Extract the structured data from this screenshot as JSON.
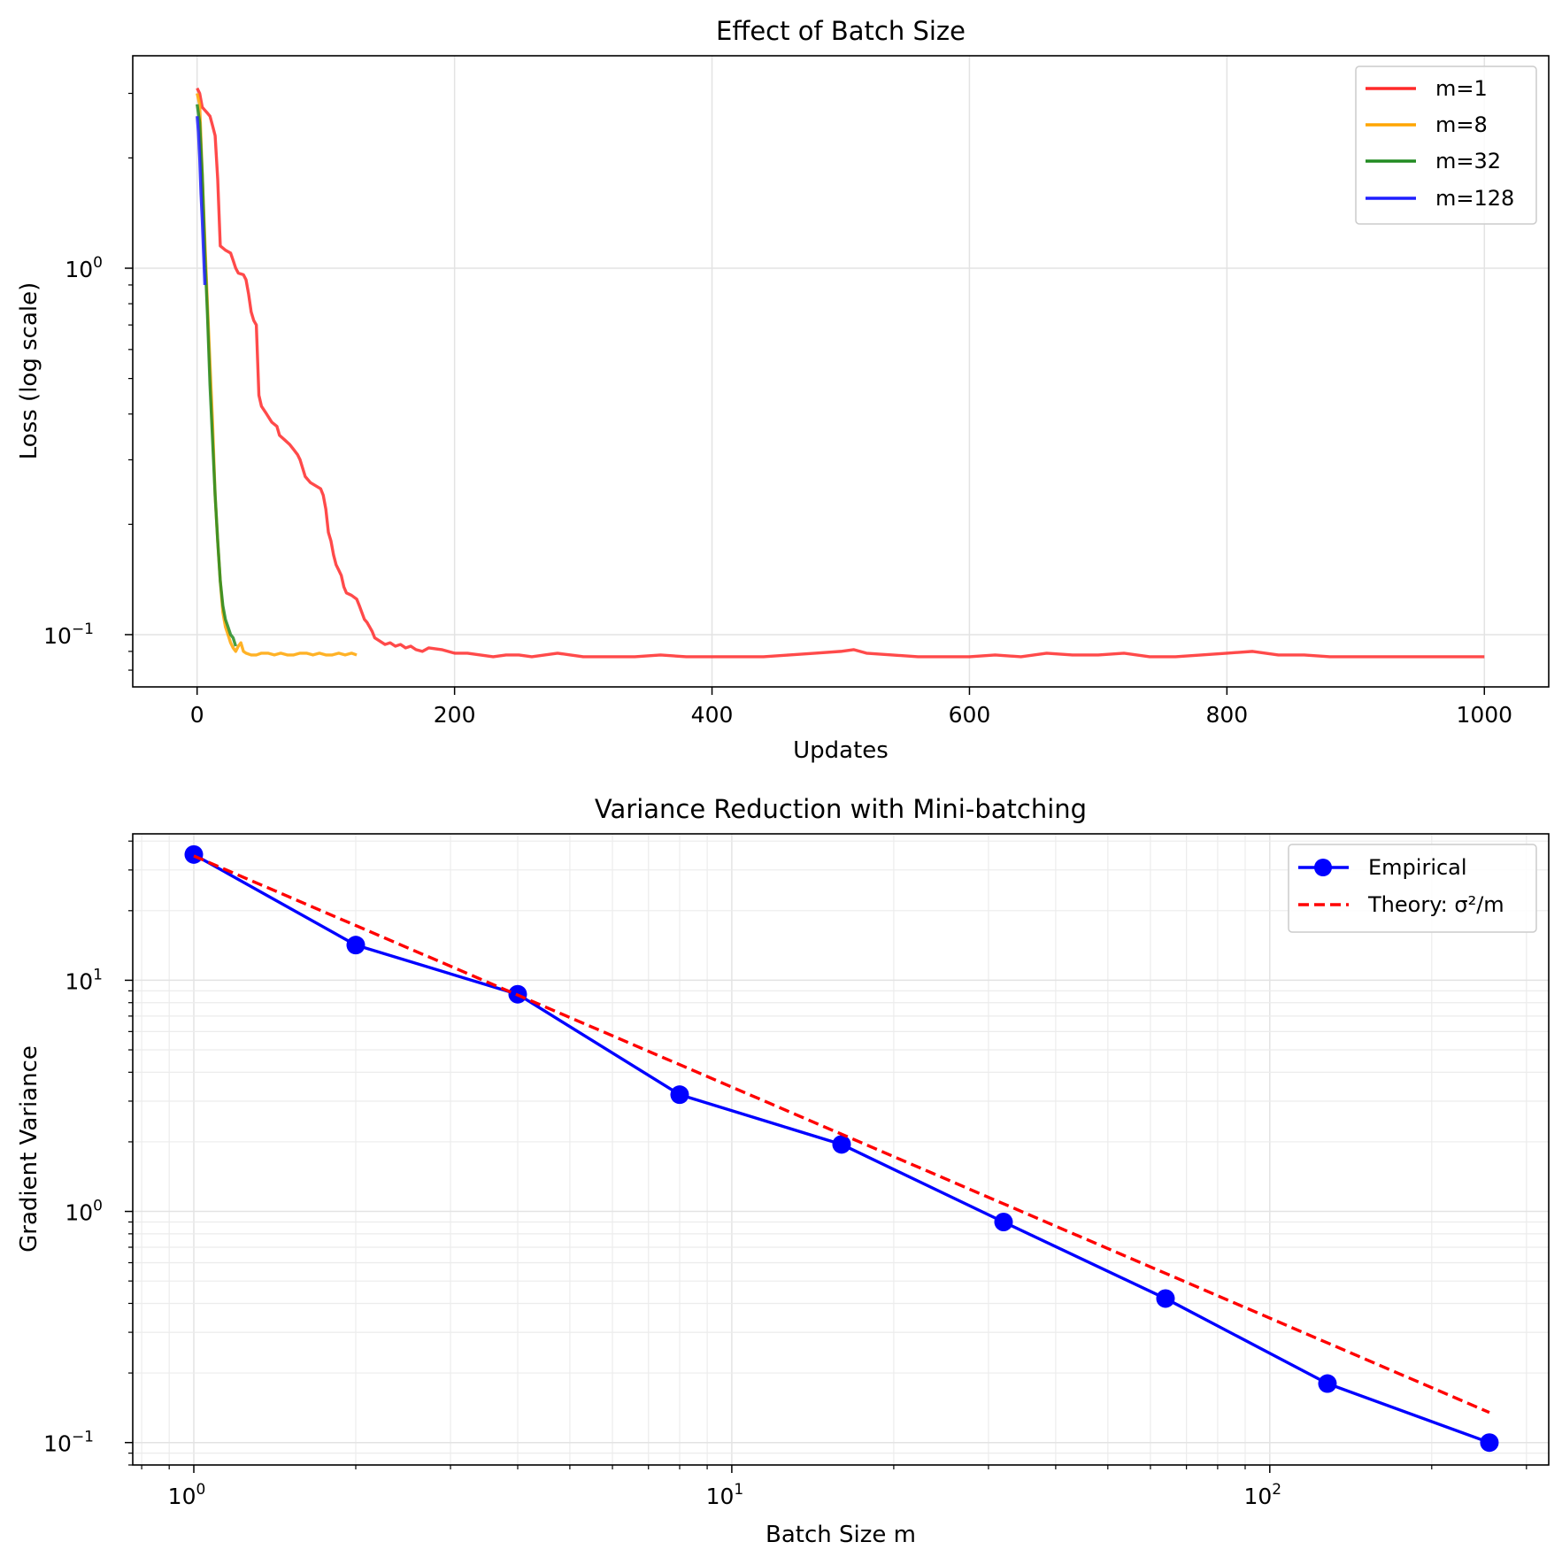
{
  "chart_data": [
    {
      "type": "line",
      "title": "Effect of Batch Size",
      "xlabel": "Updates",
      "ylabel": "Loss (log scale)",
      "xscale": "linear",
      "yscale": "log",
      "xlim": [
        -50,
        1050
      ],
      "ylim": [
        0.072,
        3.8
      ],
      "xticks": [
        0,
        200,
        400,
        600,
        800,
        1000
      ],
      "xtick_labels": [
        "0",
        "200",
        "400",
        "600",
        "800",
        "1000"
      ],
      "yticks": [
        1,
        0.1
      ],
      "ytick_labels": [
        {
          "base": "10",
          "exp": "0"
        },
        {
          "base": "10",
          "exp": "−1"
        }
      ],
      "grid": true,
      "legend": "top-right",
      "series": [
        {
          "name": "m=1",
          "color": "#ff2a2a",
          "points": [
            [
              0,
              3.1
            ],
            [
              2,
              3.0
            ],
            [
              4,
              2.75
            ],
            [
              6,
              2.7
            ],
            [
              8,
              2.65
            ],
            [
              10,
              2.6
            ],
            [
              12,
              2.45
            ],
            [
              14,
              2.3
            ],
            [
              16,
              1.75
            ],
            [
              18,
              1.15
            ],
            [
              22,
              1.12
            ],
            [
              26,
              1.1
            ],
            [
              28,
              1.05
            ],
            [
              30,
              1.0
            ],
            [
              32,
              0.97
            ],
            [
              36,
              0.96
            ],
            [
              38,
              0.93
            ],
            [
              40,
              0.85
            ],
            [
              42,
              0.76
            ],
            [
              44,
              0.72
            ],
            [
              46,
              0.7
            ],
            [
              48,
              0.45
            ],
            [
              50,
              0.42
            ],
            [
              54,
              0.4
            ],
            [
              58,
              0.38
            ],
            [
              62,
              0.37
            ],
            [
              64,
              0.35
            ],
            [
              68,
              0.34
            ],
            [
              72,
              0.33
            ],
            [
              75,
              0.32
            ],
            [
              78,
              0.31
            ],
            [
              80,
              0.3
            ],
            [
              84,
              0.27
            ],
            [
              88,
              0.26
            ],
            [
              92,
              0.255
            ],
            [
              96,
              0.25
            ],
            [
              98,
              0.24
            ],
            [
              100,
              0.22
            ],
            [
              102,
              0.19
            ],
            [
              104,
              0.18
            ],
            [
              106,
              0.165
            ],
            [
              108,
              0.155
            ],
            [
              110,
              0.15
            ],
            [
              112,
              0.145
            ],
            [
              114,
              0.135
            ],
            [
              116,
              0.13
            ],
            [
              120,
              0.128
            ],
            [
              124,
              0.125
            ],
            [
              126,
              0.12
            ],
            [
              130,
              0.11
            ],
            [
              132,
              0.108
            ],
            [
              134,
              0.105
            ],
            [
              136,
              0.102
            ],
            [
              138,
              0.098
            ],
            [
              142,
              0.096
            ],
            [
              146,
              0.094
            ],
            [
              150,
              0.095
            ],
            [
              154,
              0.093
            ],
            [
              158,
              0.094
            ],
            [
              162,
              0.092
            ],
            [
              166,
              0.093
            ],
            [
              170,
              0.091
            ],
            [
              175,
              0.09
            ],
            [
              180,
              0.092
            ],
            [
              190,
              0.091
            ],
            [
              200,
              0.089
            ],
            [
              210,
              0.089
            ],
            [
              220,
              0.088
            ],
            [
              230,
              0.087
            ],
            [
              240,
              0.088
            ],
            [
              250,
              0.088
            ],
            [
              260,
              0.087
            ],
            [
              270,
              0.088
            ],
            [
              280,
              0.089
            ],
            [
              290,
              0.088
            ],
            [
              300,
              0.087
            ],
            [
              320,
              0.087
            ],
            [
              340,
              0.087
            ],
            [
              360,
              0.088
            ],
            [
              380,
              0.087
            ],
            [
              400,
              0.087
            ],
            [
              420,
              0.087
            ],
            [
              440,
              0.087
            ],
            [
              460,
              0.088
            ],
            [
              480,
              0.089
            ],
            [
              500,
              0.09
            ],
            [
              510,
              0.091
            ],
            [
              520,
              0.089
            ],
            [
              540,
              0.088
            ],
            [
              560,
              0.087
            ],
            [
              580,
              0.087
            ],
            [
              600,
              0.087
            ],
            [
              620,
              0.088
            ],
            [
              640,
              0.087
            ],
            [
              660,
              0.089
            ],
            [
              680,
              0.088
            ],
            [
              700,
              0.088
            ],
            [
              720,
              0.089
            ],
            [
              740,
              0.087
            ],
            [
              760,
              0.087
            ],
            [
              780,
              0.088
            ],
            [
              800,
              0.089
            ],
            [
              820,
              0.09
            ],
            [
              840,
              0.088
            ],
            [
              860,
              0.088
            ],
            [
              880,
              0.087
            ],
            [
              900,
              0.087
            ],
            [
              920,
              0.087
            ],
            [
              940,
              0.087
            ],
            [
              960,
              0.087
            ],
            [
              980,
              0.087
            ],
            [
              1000,
              0.087
            ]
          ]
        },
        {
          "name": "m=8",
          "color": "#ffa500",
          "points": [
            [
              0,
              3.0
            ],
            [
              2,
              2.8
            ],
            [
              4,
              1.8
            ],
            [
              6,
              1.2
            ],
            [
              8,
              0.8
            ],
            [
              10,
              0.55
            ],
            [
              12,
              0.38
            ],
            [
              14,
              0.24
            ],
            [
              16,
              0.18
            ],
            [
              18,
              0.14
            ],
            [
              20,
              0.115
            ],
            [
              22,
              0.105
            ],
            [
              24,
              0.1
            ],
            [
              26,
              0.095
            ],
            [
              28,
              0.092
            ],
            [
              30,
              0.09
            ],
            [
              32,
              0.093
            ],
            [
              34,
              0.095
            ],
            [
              36,
              0.09
            ],
            [
              38,
              0.089
            ],
            [
              42,
              0.088
            ],
            [
              46,
              0.088
            ],
            [
              50,
              0.089
            ],
            [
              55,
              0.089
            ],
            [
              60,
              0.088
            ],
            [
              65,
              0.089
            ],
            [
              70,
              0.088
            ],
            [
              75,
              0.088
            ],
            [
              80,
              0.089
            ],
            [
              85,
              0.089
            ],
            [
              90,
              0.088
            ],
            [
              95,
              0.089
            ],
            [
              100,
              0.088
            ],
            [
              105,
              0.088
            ],
            [
              110,
              0.089
            ],
            [
              115,
              0.088
            ],
            [
              120,
              0.089
            ],
            [
              124,
              0.088
            ]
          ]
        },
        {
          "name": "m=32",
          "color": "#228b22",
          "points": [
            [
              0,
              2.8
            ],
            [
              2,
              2.5
            ],
            [
              4,
              1.8
            ],
            [
              6,
              1.1
            ],
            [
              8,
              0.75
            ],
            [
              10,
              0.48
            ],
            [
              12,
              0.34
            ],
            [
              14,
              0.24
            ],
            [
              16,
              0.18
            ],
            [
              18,
              0.14
            ],
            [
              20,
              0.12
            ],
            [
              22,
              0.11
            ],
            [
              24,
              0.105
            ],
            [
              26,
              0.1
            ],
            [
              28,
              0.098
            ],
            [
              30,
              0.093
            ]
          ]
        },
        {
          "name": "m=128",
          "color": "#1f1fff",
          "points": [
            [
              0,
              2.6
            ],
            [
              1,
              2.35
            ],
            [
              2,
              2.0
            ],
            [
              3,
              1.6
            ],
            [
              4,
              1.35
            ],
            [
              5,
              1.1
            ],
            [
              6,
              0.9
            ]
          ]
        }
      ]
    },
    {
      "type": "line",
      "title": "Variance Reduction with Mini-batching",
      "xlabel": "Batch Size m",
      "ylabel": "Gradient Variance",
      "xscale": "log",
      "yscale": "log",
      "xlim": [
        0.77,
        330
      ],
      "ylim": [
        0.08,
        43
      ],
      "xticks": [
        1,
        10,
        100
      ],
      "xtick_labels": [
        {
          "base": "10",
          "exp": "0"
        },
        {
          "base": "10",
          "exp": "1"
        },
        {
          "base": "10",
          "exp": "2"
        }
      ],
      "yticks": [
        10,
        1,
        0.1
      ],
      "ytick_labels": [
        {
          "base": "10",
          "exp": "1"
        },
        {
          "base": "10",
          "exp": "0"
        },
        {
          "base": "10",
          "exp": "−1"
        }
      ],
      "grid": true,
      "legend": "top-right",
      "series": [
        {
          "name": "Empirical",
          "color": "#0000ff",
          "style": "solid-markers",
          "x": [
            1,
            2,
            4,
            8,
            16,
            32,
            64,
            128,
            256
          ],
          "y": [
            35.0,
            14.2,
            8.7,
            3.2,
            1.95,
            0.9,
            0.42,
            0.18,
            0.1
          ]
        },
        {
          "name": "Theory: σ²/m",
          "color": "#ff0000",
          "style": "dashed",
          "x": [
            1,
            256
          ],
          "y": [
            34.5,
            0.135
          ]
        }
      ]
    }
  ]
}
